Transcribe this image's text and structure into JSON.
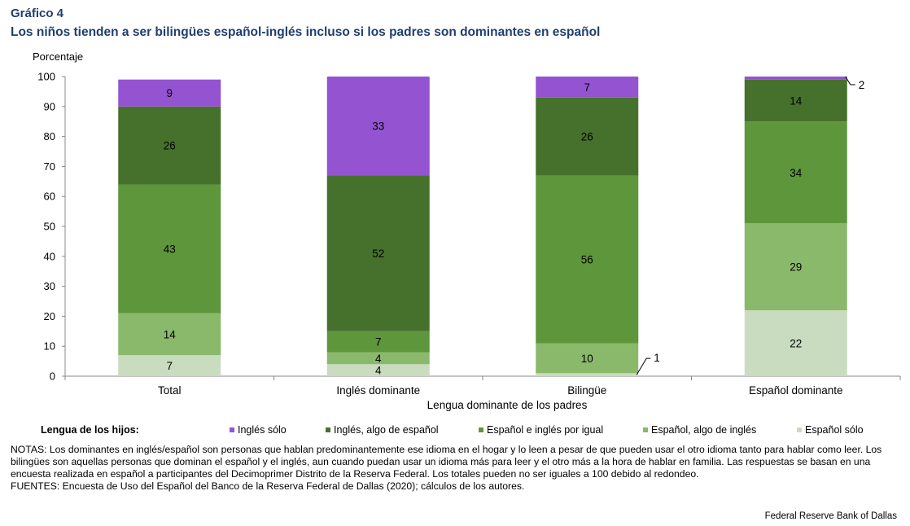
{
  "figure_number": "Gráfico 4",
  "title": "Los niños tienden a ser bilingües español-inglés incluso si los padres son dominantes en español",
  "legend_title": "Lengua de los hijos:",
  "notes": "NOTAS: Los dominantes en inglés/español son personas que hablan predominantemente ese idioma en el hogar y lo leen a pesar de que pueden usar el otro idioma tanto para hablar como leer. Los bilingües son aquellas personas que dominan el español y el inglés, aun cuando puedan usar un idioma más para leer y el otro más a la hora de hablar en familia. Las respuestas se basan en una encuesta realizada en español a participantes del Decimoprimer Distrito de la Reserva Federal. Los totales pueden no ser iguales a 100 debido al redondeo.",
  "sources": "FUENTES: Encuesta de Uso del Español del Banco de la Reserva Federal de Dallas (2020); cálculos de los autores.",
  "credit": "Federal Reserve Bank of Dallas",
  "chart_data": {
    "type": "bar",
    "stacked": true,
    "title": "Los niños tienden a ser bilingües español-inglés incluso si los padres son dominantes en español",
    "xlabel": "Lengua dominante de los padres",
    "ylabel": "Porcentaje",
    "ylim": [
      0,
      100
    ],
    "yticks": [
      0,
      10,
      20,
      30,
      40,
      50,
      60,
      70,
      80,
      90,
      100
    ],
    "grid": false,
    "legend_position": "bottom",
    "categories": [
      "Total",
      "Inglés dominante",
      "Bilingüe",
      "Español dominante"
    ],
    "series": [
      {
        "name": "Español sólo",
        "color": "#c9dcbf",
        "values": [
          7,
          4,
          1,
          22
        ]
      },
      {
        "name": "Español, algo de inglés",
        "color": "#8ab96c",
        "values": [
          14,
          4,
          10,
          29
        ]
      },
      {
        "name": "Español e inglés por igual",
        "color": "#5d963b",
        "values": [
          43,
          7,
          56,
          34
        ]
      },
      {
        "name": "Inglés, algo de español",
        "color": "#46712c",
        "values": [
          26,
          52,
          26,
          14
        ]
      },
      {
        "name": "Inglés sólo",
        "color": "#9453d1",
        "values": [
          9,
          33,
          7,
          2
        ]
      }
    ],
    "legend_order": [
      "Inglés sólo",
      "Inglés, algo de español",
      "Español e inglés por igual",
      "Español, algo de inglés",
      "Español sólo"
    ],
    "callouts": [
      {
        "category": "Bilingüe",
        "series": "Español sólo",
        "label": "1"
      },
      {
        "category": "Español dominante",
        "series": "Inglés sólo",
        "label": "2"
      }
    ]
  }
}
